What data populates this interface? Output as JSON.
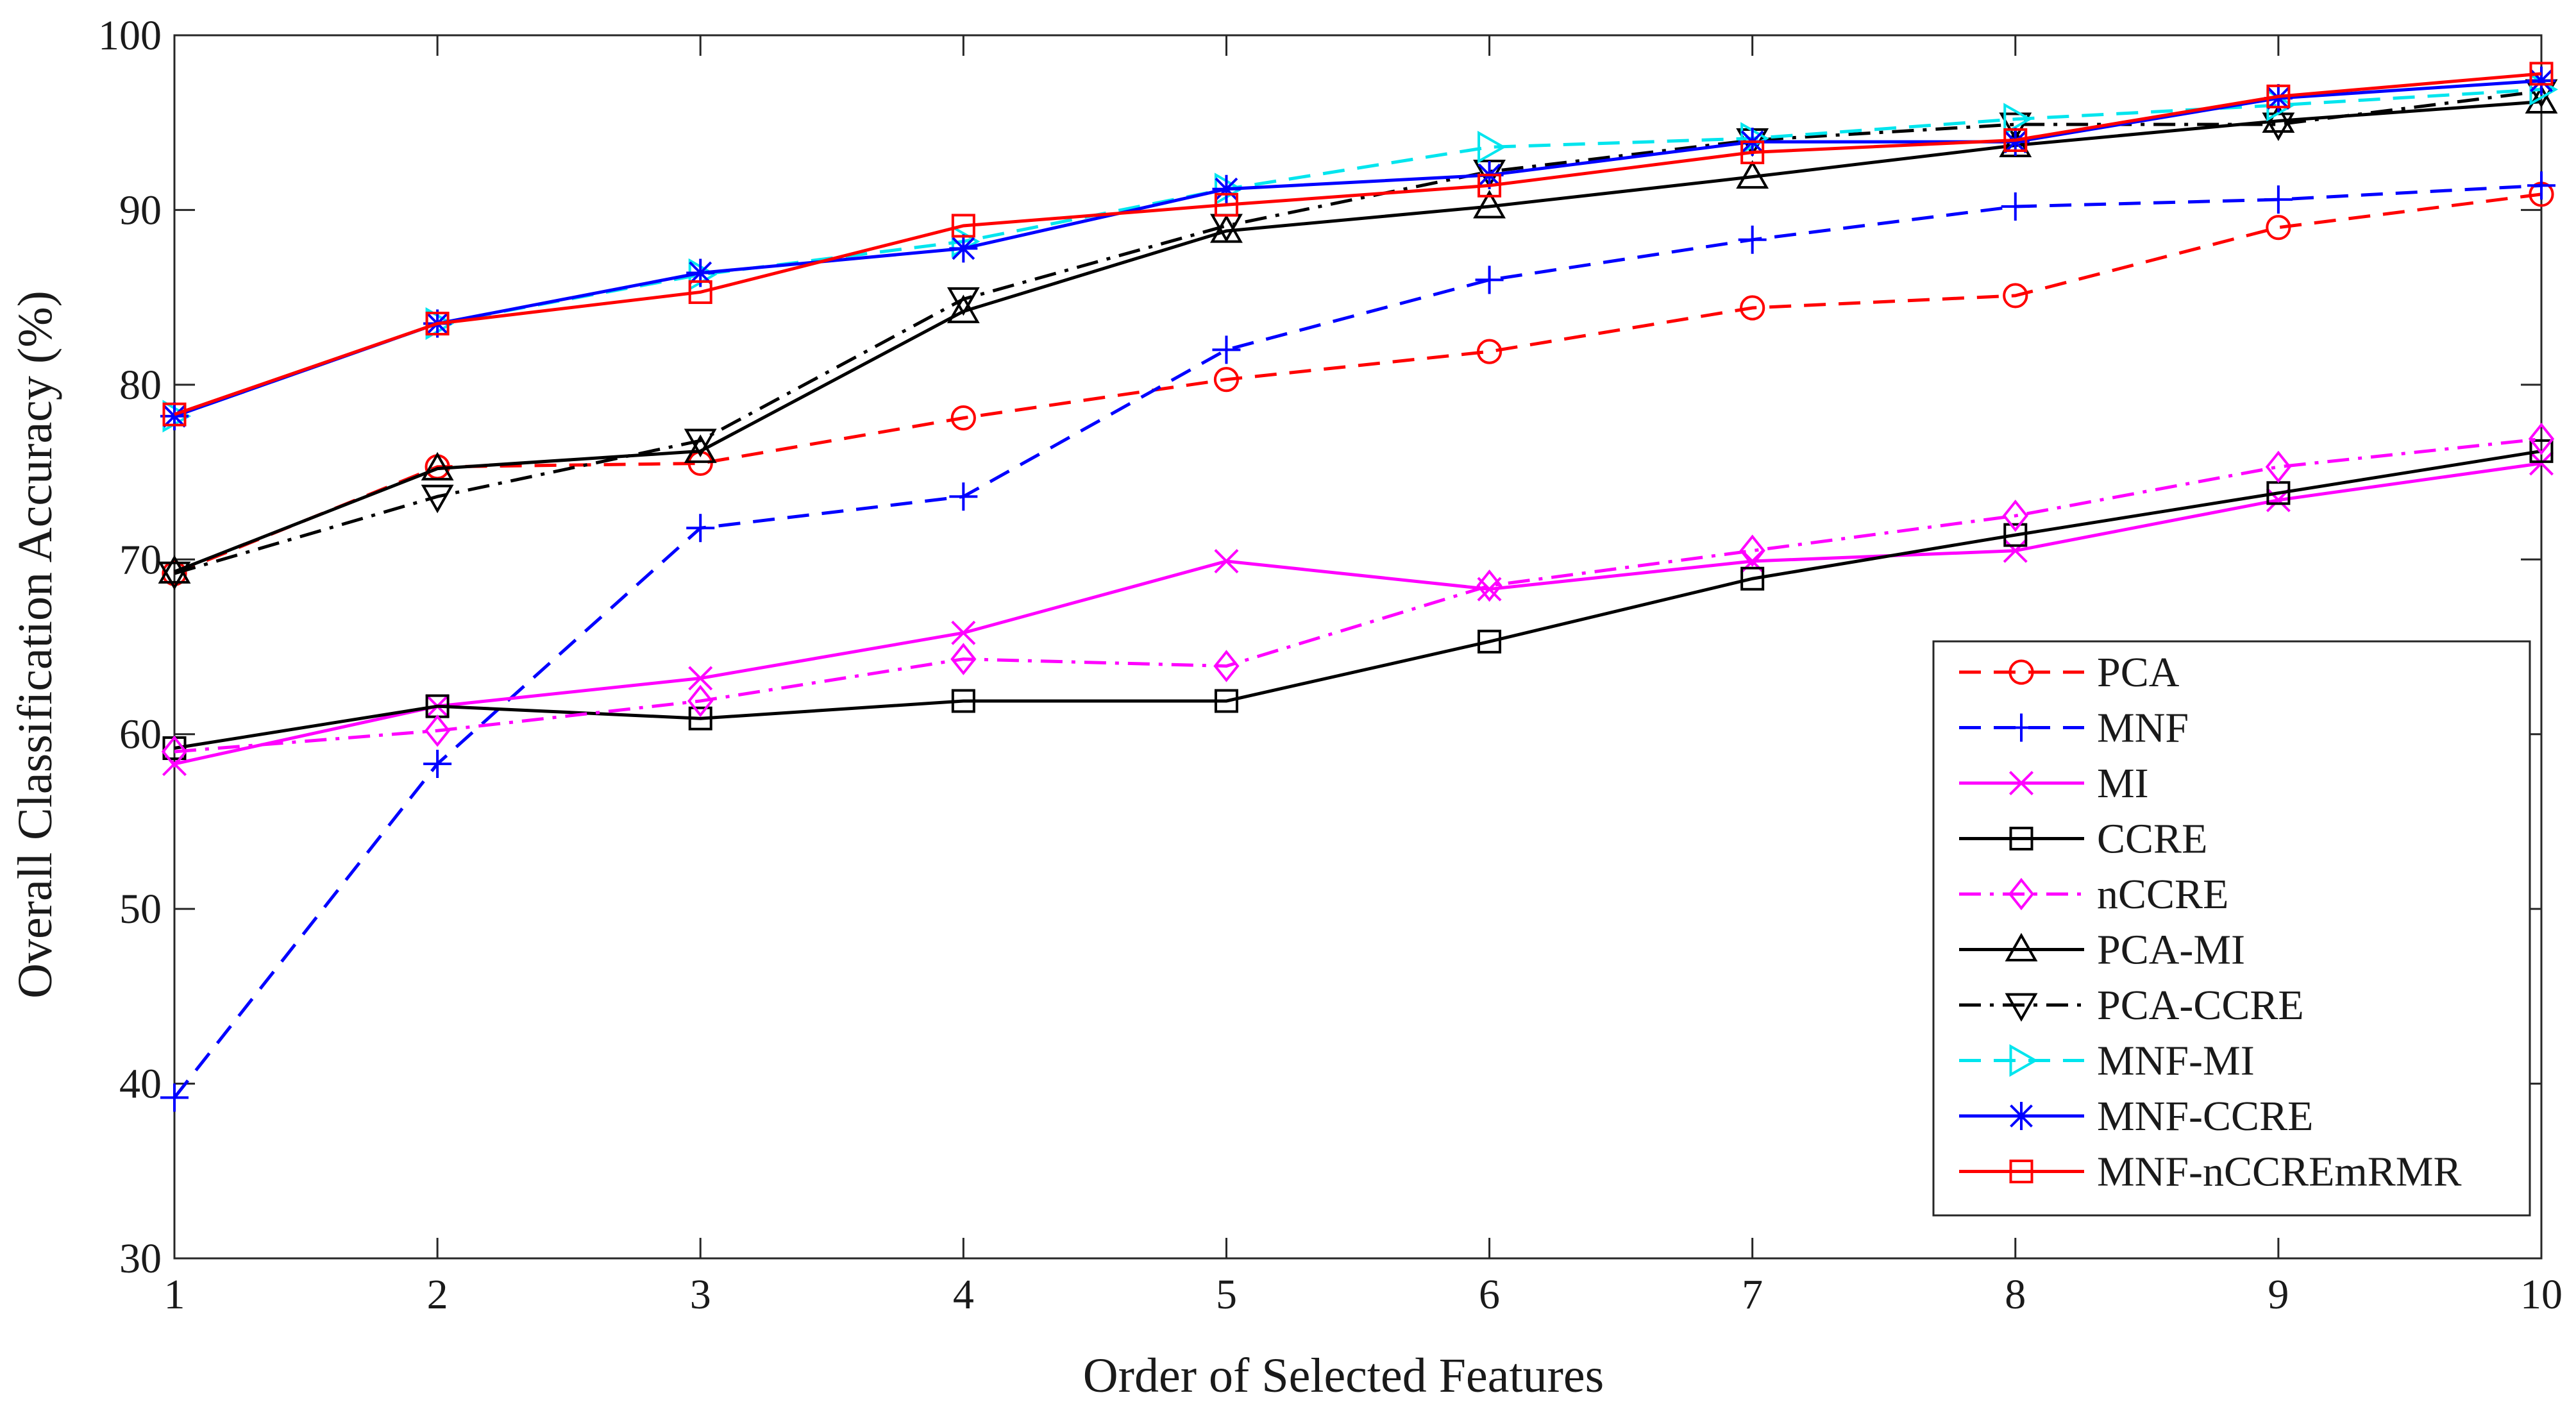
{
  "chart_data": {
    "type": "line",
    "title": "",
    "xlabel": "Order of Selected Features",
    "ylabel": "Overall Classification Accuracy (%)",
    "xlim": [
      1,
      10
    ],
    "ylim": [
      30,
      100
    ],
    "x": [
      1,
      2,
      3,
      4,
      5,
      6,
      7,
      8,
      9,
      10
    ],
    "x_ticks": [
      "1",
      "2",
      "3",
      "4",
      "5",
      "6",
      "7",
      "8",
      "9",
      "10"
    ],
    "y_ticks": [
      "30",
      "40",
      "50",
      "60",
      "70",
      "80",
      "90",
      "100"
    ],
    "grid": false,
    "legend_position": "bottom-right",
    "series": [
      {
        "name": "PCA",
        "color": "#ff0000",
        "dash": "dashed",
        "marker": "circle",
        "values": [
          69.2,
          75.3,
          75.5,
          78.1,
          80.3,
          81.9,
          84.4,
          85.1,
          89.0,
          90.9
        ]
      },
      {
        "name": "MNF",
        "color": "#0000ff",
        "dash": "dashed",
        "marker": "plus",
        "values": [
          39.2,
          58.3,
          71.8,
          73.6,
          82.0,
          86.0,
          88.3,
          90.2,
          90.6,
          91.4
        ]
      },
      {
        "name": "MI",
        "color": "#ff00ff",
        "dash": "solid",
        "marker": "x",
        "values": [
          58.3,
          61.6,
          63.2,
          65.8,
          69.9,
          68.3,
          69.9,
          70.5,
          73.4,
          75.5
        ]
      },
      {
        "name": "CCRE",
        "color": "#000000",
        "dash": "solid",
        "marker": "square",
        "values": [
          59.2,
          61.6,
          60.9,
          61.9,
          61.9,
          65.3,
          68.9,
          71.4,
          73.8,
          76.2
        ]
      },
      {
        "name": "nCCRE",
        "color": "#ff00ff",
        "dash": "dashdot",
        "marker": "diamond",
        "values": [
          59.0,
          60.2,
          61.9,
          64.3,
          63.9,
          68.5,
          70.5,
          72.5,
          75.3,
          76.9
        ]
      },
      {
        "name": "PCA-MI",
        "color": "#000000",
        "dash": "solid",
        "marker": "triangle-up",
        "values": [
          69.3,
          75.2,
          76.2,
          84.2,
          88.8,
          90.2,
          91.9,
          93.7,
          95.1,
          96.2
        ]
      },
      {
        "name": "PCA-CCRE",
        "color": "#000000",
        "dash": "dashdot",
        "marker": "triangle-down",
        "values": [
          69.2,
          73.6,
          76.8,
          84.9,
          89.1,
          92.2,
          94.0,
          94.9,
          94.9,
          96.8
        ]
      },
      {
        "name": "MNF-MI",
        "color": "#00e5ee",
        "dash": "dashed",
        "marker": "triangle-right",
        "values": [
          78.2,
          83.5,
          86.3,
          88.2,
          91.2,
          93.6,
          94.1,
          95.2,
          96.0,
          96.9
        ]
      },
      {
        "name": "MNF-CCRE",
        "color": "#0000ff",
        "dash": "solid",
        "marker": "asterisk",
        "values": [
          78.2,
          83.5,
          86.4,
          87.8,
          91.2,
          92.0,
          93.9,
          93.9,
          96.4,
          97.4
        ]
      },
      {
        "name": "MNF-nCCREmRMR",
        "color": "#ff0000",
        "dash": "solid",
        "marker": "square",
        "values": [
          78.3,
          83.5,
          85.3,
          89.1,
          90.3,
          91.4,
          93.3,
          94.0,
          96.5,
          97.8
        ]
      }
    ]
  }
}
